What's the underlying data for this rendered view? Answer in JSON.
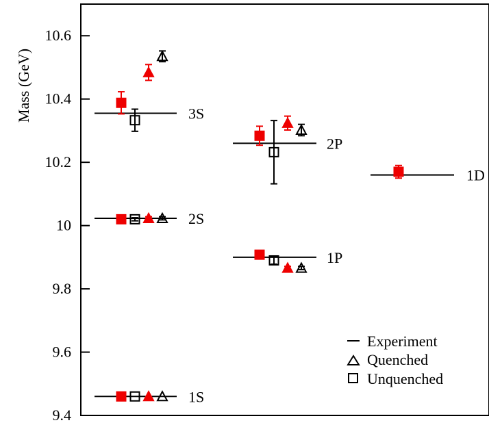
{
  "chart_data": {
    "type": "scatter",
    "title": "",
    "xlabel": "",
    "ylabel": "Mass (GeV)",
    "ylim": [
      9.4,
      10.7
    ],
    "yticks": [
      9.4,
      9.6,
      9.8,
      10,
      10.2,
      10.4,
      10.6
    ],
    "ytick_labels": [
      "9.4",
      "9.6",
      "9.8",
      "10",
      "10.2",
      "10.4",
      "10.6"
    ],
    "grid": false,
    "legend_placement": "bottom-right",
    "colors": {
      "red_series": "#ee0000",
      "black_series": "#000000"
    },
    "states": [
      {
        "label": "1S",
        "experiment": 9.46,
        "unquenched_red_square": {
          "value": 9.46,
          "error": 0.0
        },
        "unquenched_open_square": {
          "value": 9.46,
          "error": 0.0
        },
        "quenched_red_triangle": {
          "value": 9.46,
          "error": 0.0
        },
        "quenched_open_triangle": {
          "value": 9.46,
          "error": 0.0
        }
      },
      {
        "label": "2S",
        "experiment": 10.023,
        "unquenched_red_square": {
          "value": 10.02,
          "error": 0.005
        },
        "unquenched_open_square": {
          "value": 10.02,
          "error": 0.005
        },
        "quenched_red_triangle": {
          "value": 10.023,
          "error": 0.005
        },
        "quenched_open_triangle": {
          "value": 10.023,
          "error": 0.005
        }
      },
      {
        "label": "3S",
        "experiment": 10.355,
        "unquenched_red_square": {
          "value": 10.388,
          "error": 0.035
        },
        "unquenched_open_square": {
          "value": 10.333,
          "error": 0.035
        },
        "quenched_red_triangle": {
          "value": 10.484,
          "error": 0.025
        },
        "quenched_open_triangle": {
          "value": 10.535,
          "error": 0.017
        }
      },
      {
        "label": "1P",
        "experiment": 9.9,
        "unquenched_red_square": {
          "value": 9.908,
          "error": 0.005
        },
        "unquenched_open_square": {
          "value": 9.89,
          "error": 0.012
        },
        "quenched_red_triangle": {
          "value": 9.866,
          "error": 0.005
        },
        "quenched_open_triangle": {
          "value": 9.866,
          "error": 0.005
        }
      },
      {
        "label": "2P",
        "experiment": 10.26,
        "unquenched_red_square": {
          "value": 10.284,
          "error": 0.03
        },
        "unquenched_open_square": {
          "value": 10.232,
          "error": 0.1
        },
        "quenched_red_triangle": {
          "value": 10.324,
          "error": 0.022
        },
        "quenched_open_triangle": {
          "value": 10.302,
          "error": 0.018
        }
      },
      {
        "label": "1D",
        "experiment": 10.16,
        "unquenched_red_square": {
          "value": 10.17,
          "error": 0.02
        }
      }
    ],
    "legend": [
      {
        "marker": "line",
        "label": "Experiment"
      },
      {
        "marker": "open-triangle",
        "label": "Quenched"
      },
      {
        "marker": "open-square",
        "label": "Unquenched"
      }
    ]
  }
}
